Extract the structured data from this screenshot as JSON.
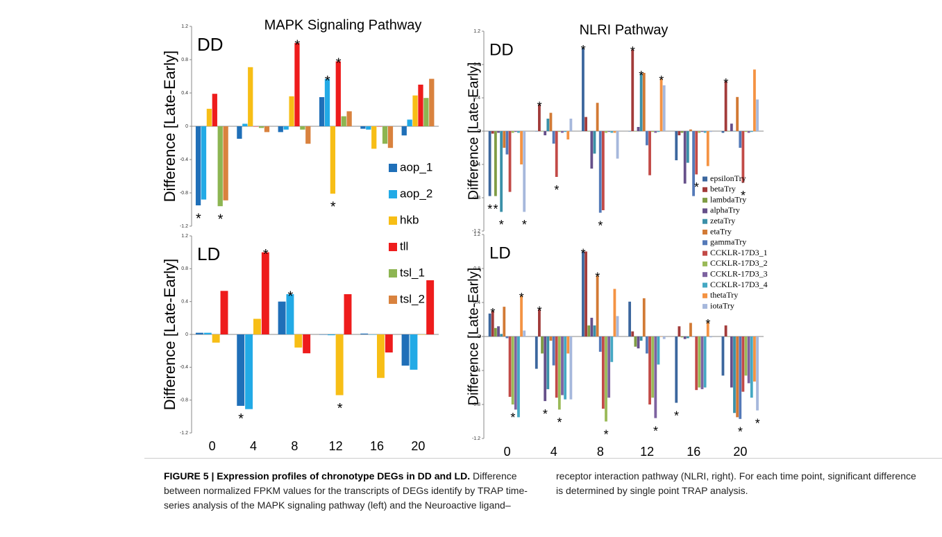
{
  "chart_data": [
    {
      "type": "bar",
      "title": "MAPK Signaling Pathway",
      "panel_label": "DD",
      "ylabel": "Difference [Late-Early]",
      "categories": [
        null,
        null,
        null,
        null,
        null,
        null
      ],
      "ylim": [
        -1.2,
        1.2
      ],
      "yticks": [
        -1.2,
        -0.8,
        -0.4,
        0,
        0.4,
        0.8,
        1.2
      ],
      "series": [
        {
          "name": "aop_1",
          "color": "#1f6fb8",
          "values": [
            -0.95,
            -0.15,
            -0.07,
            0.35,
            -0.03,
            -0.11
          ]
        },
        {
          "name": "aop_2",
          "color": "#22aae6",
          "values": [
            -0.88,
            0.03,
            -0.04,
            0.57,
            -0.04,
            0.08
          ]
        },
        {
          "name": "hkb",
          "color": "#f7be16",
          "values": [
            0.21,
            0.71,
            0.36,
            -0.81,
            -0.27,
            0.37
          ]
        },
        {
          "name": "tll",
          "color": "#ee1c1c",
          "values": [
            0.39,
            0,
            1.0,
            0.78,
            0,
            0.5
          ]
        },
        {
          "name": "tsl_1",
          "color": "#8db552",
          "values": [
            -0.96,
            -0.02,
            -0.04,
            0.12,
            -0.21,
            0.34
          ]
        },
        {
          "name": "tsl_2",
          "color": "#d9823e",
          "values": [
            -0.89,
            -0.07,
            -0.21,
            0.18,
            -0.26,
            0.57
          ]
        }
      ],
      "significance": [
        {
          "label": "*",
          "series": 0,
          "category": 0
        },
        {
          "label": "*",
          "series": 4,
          "category": 0
        },
        {
          "label": "*",
          "series": 3,
          "category": 2
        },
        {
          "label": "*",
          "series": 1,
          "category": 3
        },
        {
          "label": "*",
          "series": 3,
          "category": 3
        },
        {
          "label": "*",
          "series": 2,
          "category": 3
        }
      ]
    },
    {
      "type": "bar",
      "panel_label": "LD",
      "ylabel": "Difference [Late-Early]",
      "categories": [
        "0",
        "4",
        "8",
        "12",
        "16",
        "20"
      ],
      "ylim": [
        -1.2,
        1.2
      ],
      "yticks": [
        -1.2,
        -0.8,
        -0.4,
        0,
        0.4,
        0.8,
        1.2
      ],
      "series": [
        {
          "color": "#1f6fb8",
          "values": [
            0.02,
            -0.87,
            0.4,
            0,
            0.01,
            -0.38
          ]
        },
        {
          "color": "#22aae6",
          "values": [
            0.02,
            -0.91,
            0.49,
            -0.01,
            0,
            -0.43
          ]
        },
        {
          "color": "#f7be16",
          "values": [
            -0.1,
            0.19,
            -0.16,
            -0.74,
            -0.53,
            0
          ]
        },
        {
          "color": "#ee1c1c",
          "values": [
            0.53,
            1.0,
            -0.23,
            0.49,
            -0.22,
            0.66
          ]
        }
      ],
      "significance": [
        {
          "label": "*",
          "series": 0,
          "category": 1
        },
        {
          "label": "*",
          "series": 3,
          "category": 1
        },
        {
          "label": "*",
          "series": 1,
          "category": 2
        },
        {
          "label": "*",
          "series": 2,
          "category": 3
        }
      ]
    },
    {
      "type": "bar",
      "title": "NLRI Pathway",
      "panel_label": "DD",
      "ylabel": "Difference [Late-Early]",
      "categories": [
        null,
        null,
        null,
        null,
        null,
        null
      ],
      "ylim": [
        -1.2,
        1.2
      ],
      "yticks": [
        -1.2,
        -0.8,
        -0.4,
        0,
        0.4,
        0.8,
        1.2
      ],
      "series": [
        {
          "name": "epsilonTry",
          "color": "#3c679e",
          "values": [
            -0.78,
            0,
            1.0,
            0,
            -0.35,
            -0.02
          ]
        },
        {
          "name": "betaTry",
          "color": "#a23b3a",
          "values": [
            -0.03,
            0.32,
            0.17,
            0.98,
            -0.05,
            0.6
          ]
        },
        {
          "name": "lambdaTry",
          "color": "#7f9c45",
          "values": [
            -0.78,
            0,
            0,
            0,
            -0.02,
            0
          ]
        },
        {
          "name": "alphaTry",
          "color": "#66508a",
          "values": [
            -0.02,
            -0.05,
            -0.45,
            0.05,
            -0.63,
            0.09
          ]
        },
        {
          "name": "zetaTry",
          "color": "#3b90a8",
          "values": [
            -0.97,
            0.15,
            -0.27,
            0.69,
            -0.38,
            0
          ]
        },
        {
          "name": "etaTry",
          "color": "#d27a35",
          "values": [
            -0.2,
            0.22,
            0.34,
            0.7,
            0.02,
            0.41
          ]
        },
        {
          "name": "gammaTry",
          "color": "#5479b8",
          "values": [
            -0.28,
            -0.15,
            -0.98,
            -0.17,
            -0.78,
            -0.2
          ]
        },
        {
          "name": "CCKLR-17D3_1",
          "color": "#c24a47",
          "values": [
            -0.73,
            -0.55,
            -0.95,
            -0.53,
            -0.52,
            -0.62
          ]
        },
        {
          "name": "CCKLR-17D3_2",
          "color": "#9aba58",
          "values": [
            -0.02,
            -0.01,
            -0.02,
            -0.01,
            -0.02,
            -0.01
          ]
        },
        {
          "name": "CCKLR-17D3_3",
          "color": "#7d62a0",
          "values": [
            -0.01,
            -0.02,
            -0.01,
            -0.02,
            -0.01,
            -0.02
          ]
        },
        {
          "name": "CCKLR-17D3_4",
          "color": "#45a8c3",
          "values": [
            -0.02,
            -0.01,
            -0.02,
            -0.01,
            -0.02,
            -0.01
          ]
        },
        {
          "name": "thetaTry",
          "color": "#f49343",
          "values": [
            -0.4,
            -0.1,
            -0.02,
            0.63,
            -0.42,
            0.74
          ]
        },
        {
          "name": "iotaTry",
          "color": "#a6b8dc",
          "values": [
            -0.97,
            0.15,
            -0.33,
            0.55,
            -0.01,
            0.38
          ]
        }
      ],
      "significance": [
        {
          "label": "*",
          "series": 0,
          "category": 0
        },
        {
          "label": "*",
          "series": 2,
          "category": 0
        },
        {
          "label": "*",
          "series": 4,
          "category": 0
        },
        {
          "label": "*",
          "series": 12,
          "category": 0
        },
        {
          "label": "*",
          "series": 1,
          "category": 1
        },
        {
          "label": "*",
          "series": 7,
          "category": 1
        },
        {
          "label": "*",
          "series": 0,
          "category": 2
        },
        {
          "label": "*",
          "series": 6,
          "category": 2
        },
        {
          "label": "*",
          "series": 1,
          "category": 3
        },
        {
          "label": "*",
          "series": 4,
          "category": 3
        },
        {
          "label": "*",
          "series": 11,
          "category": 3
        },
        {
          "label": "*",
          "series": 7,
          "category": 4
        },
        {
          "label": "*",
          "series": 1,
          "category": 5
        },
        {
          "label": "*",
          "series": 7,
          "category": 5
        }
      ]
    },
    {
      "type": "bar",
      "panel_label": "LD",
      "ylabel": "Difference [Late-Early]",
      "categories": [
        "0",
        "4",
        "8",
        "12",
        "16",
        "20"
      ],
      "ylim": [
        -1.2,
        1.2
      ],
      "yticks": [
        -1.2,
        -0.8,
        -0.4,
        0,
        0.4,
        0.8,
        1.2
      ],
      "series": [
        {
          "color": "#3c679e",
          "values": [
            0.27,
            -0.38,
            1.0,
            0.41,
            -0.78,
            -0.46
          ]
        },
        {
          "color": "#a23b3a",
          "values": [
            0.3,
            0.32,
            1.0,
            0.06,
            0.12,
            0.13
          ]
        },
        {
          "color": "#7f9c45",
          "values": [
            0.1,
            -0.2,
            0.13,
            -0.12,
            -0.01,
            0
          ]
        },
        {
          "color": "#66508a",
          "values": [
            0.12,
            -0.76,
            0.22,
            -0.14,
            -0.03,
            -0.6
          ]
        },
        {
          "color": "#3b90a8",
          "values": [
            0.03,
            -0.62,
            0.13,
            -0.05,
            -0.02,
            -0.9
          ]
        },
        {
          "color": "#d27a35",
          "values": [
            0.35,
            -0.05,
            0.72,
            0.45,
            0.16,
            -0.95
          ]
        },
        {
          "color": "#5479b8",
          "values": [
            -0.02,
            -0.34,
            -0.18,
            -0.2,
            0,
            -0.97
          ]
        },
        {
          "color": "#c24a47",
          "values": [
            -0.71,
            -0.72,
            -0.85,
            -0.8,
            -0.63,
            -0.65
          ]
        },
        {
          "color": "#9aba58",
          "values": [
            -0.8,
            -0.86,
            -1.0,
            -0.72,
            -0.6,
            -0.46
          ]
        },
        {
          "color": "#7d62a0",
          "values": [
            -0.86,
            -0.69,
            -0.72,
            -0.96,
            -0.62,
            -0.55
          ]
        },
        {
          "color": "#45a8c3",
          "values": [
            -0.95,
            -0.74,
            -0.3,
            -0.33,
            -0.6,
            -0.72
          ]
        },
        {
          "color": "#f49343",
          "values": [
            0.48,
            -0.2,
            0.56,
            0,
            0.17,
            -0.53
          ]
        },
        {
          "color": "#a6b8dc",
          "values": [
            0.07,
            -0.74,
            0.24,
            -0.03,
            -0.01,
            -0.87
          ]
        }
      ],
      "significance": [
        {
          "label": "*",
          "series": 1,
          "category": 0
        },
        {
          "label": "*",
          "series": 11,
          "category": 0
        },
        {
          "label": "*",
          "series": 8,
          "category": 0
        },
        {
          "label": "*",
          "series": 1,
          "category": 1
        },
        {
          "label": "*",
          "series": 3,
          "category": 1
        },
        {
          "label": "*",
          "series": 8,
          "category": 1
        },
        {
          "label": "*",
          "series": 0,
          "category": 2
        },
        {
          "label": "*",
          "series": 5,
          "category": 2
        },
        {
          "label": "*",
          "series": 8,
          "category": 2
        },
        {
          "label": "*",
          "series": 9,
          "category": 3
        },
        {
          "label": "*",
          "series": 0,
          "category": 4
        },
        {
          "label": "*",
          "series": 11,
          "category": 4
        },
        {
          "label": "*",
          "series": 6,
          "category": 5
        },
        {
          "label": "*",
          "series": 12,
          "category": 5
        }
      ]
    }
  ],
  "caption": {
    "title": "FIGURE 5 | Expression profiles of chronotype DEGs in DD and LD.",
    "text": "Difference between normalized FPKM values for the transcripts of DEGs identify by TRAP time-series analysis of the MAPK signaling pathway (left) and the Neuroactive ligand–receptor interaction pathway (NLRI, right). For each time point, significant difference is determined by single point TRAP analysis."
  }
}
